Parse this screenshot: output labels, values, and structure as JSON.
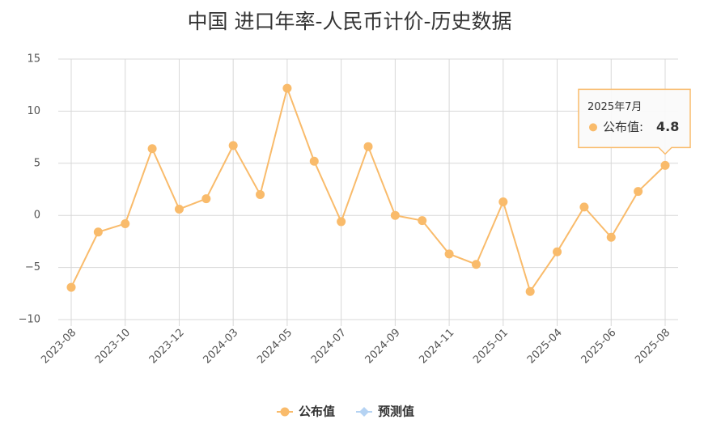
{
  "chart_data": {
    "type": "line",
    "title": "中国 进口年率-人民币计价-历史数据",
    "categories": [
      "2023-08",
      null,
      "2023-10",
      null,
      "2023-12",
      null,
      "2024-03",
      null,
      "2024-05",
      null,
      "2024-07",
      null,
      "2024-09",
      null,
      "2024-11",
      null,
      "2025-01",
      null,
      "2025-04",
      null,
      "2025-06",
      null,
      "2025-08"
    ],
    "series": [
      {
        "name": "公布值",
        "color": "#f9bb6b",
        "values": [
          -6.9,
          -1.6,
          -0.8,
          6.4,
          0.6,
          1.6,
          6.7,
          2.0,
          12.2,
          5.2,
          -0.6,
          6.6,
          0.0,
          -0.5,
          -3.7,
          -4.7,
          1.3,
          -7.3,
          -3.5,
          0.8,
          -2.1,
          2.3,
          4.8
        ]
      },
      {
        "name": "预测值",
        "color": "#b5d3f3",
        "values": [
          null,
          null,
          null,
          null,
          null,
          null,
          null,
          null,
          null,
          null,
          null,
          null,
          null,
          null,
          null,
          null,
          null,
          null,
          null,
          null,
          null,
          null,
          null
        ]
      }
    ],
    "ylim": [
      -10,
      15
    ],
    "yticks": [
      {
        "value": -10,
        "label": "−10"
      },
      {
        "value": -5,
        "label": "−5"
      },
      0,
      5,
      10,
      15
    ],
    "grid": true,
    "legend": "bottom",
    "tooltip": {
      "title": "2025年7月",
      "label": "公布值:"
    }
  }
}
